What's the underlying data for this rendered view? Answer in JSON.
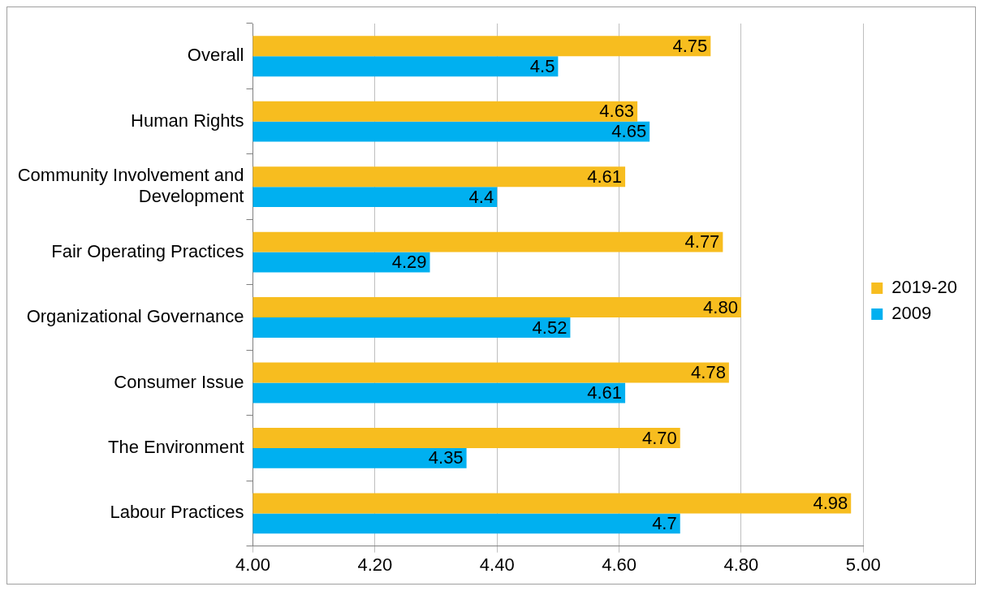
{
  "chart_data": {
    "type": "bar",
    "orientation": "horizontal",
    "categories": [
      "Overall",
      "Human Rights",
      "Community Involvement and Development",
      "Fair Operating Practices",
      "Organizational Governance",
      "Consumer Issue",
      "The Environment",
      "Labour Practices"
    ],
    "series": [
      {
        "name": "2019-20",
        "color": "#f7bd1f",
        "values": [
          4.75,
          4.63,
          4.61,
          4.77,
          4.8,
          4.78,
          4.7,
          4.98
        ],
        "value_labels": [
          "4.75",
          "4.63",
          "4.61",
          "4.77",
          "4.80",
          "4.78",
          "4.70",
          "4.98"
        ]
      },
      {
        "name": "2009",
        "color": "#00b0f0",
        "values": [
          4.5,
          4.65,
          4.4,
          4.29,
          4.52,
          4.61,
          4.35,
          4.7
        ],
        "value_labels": [
          "4.5",
          "4.65",
          "4.4",
          "4.29",
          "4.52",
          "4.61",
          "4.35",
          "4.7"
        ]
      }
    ],
    "xlim": [
      4,
      5
    ],
    "xticks": [
      {
        "value": 4,
        "label": "4.00"
      },
      {
        "value": 4.2,
        "label": "4.20"
      },
      {
        "value": 4.4,
        "label": "4.40"
      },
      {
        "value": 4.6,
        "label": "4.60"
      },
      {
        "value": 4.8,
        "label": "4.80"
      },
      {
        "value": 5,
        "label": "5.00"
      }
    ],
    "grid": "x",
    "legend": "right"
  }
}
